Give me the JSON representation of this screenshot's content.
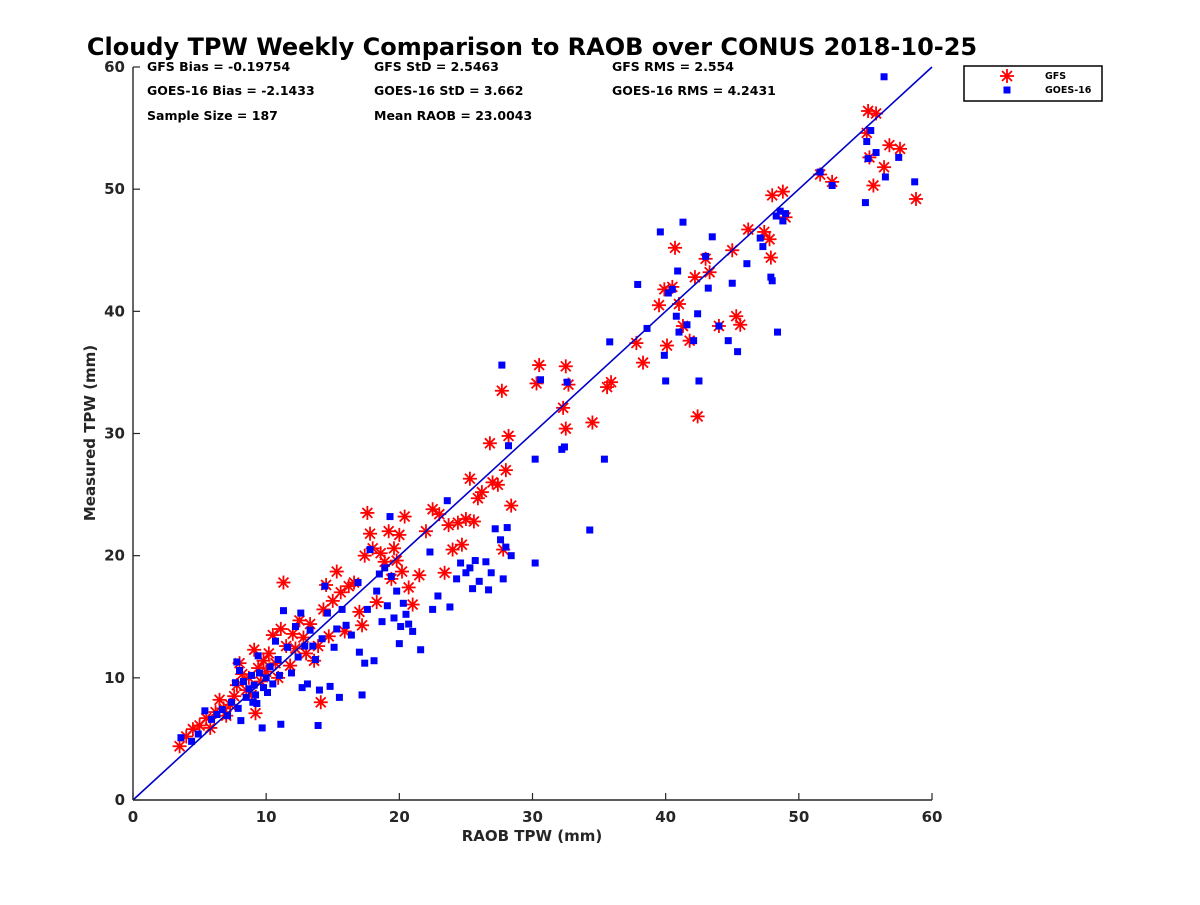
{
  "chart_data": {
    "type": "scatter",
    "title": "Cloudy TPW Weekly Comparison to RAOB over CONUS 2018-10-25",
    "xlabel": "RAOB TPW (mm)",
    "ylabel": "Measured TPW (mm)",
    "xlim": [
      0,
      60
    ],
    "ylim": [
      0,
      60
    ],
    "xticks": [
      "0",
      "10",
      "20",
      "30",
      "40",
      "50",
      "60"
    ],
    "yticks": [
      "0",
      "10",
      "20",
      "30",
      "40",
      "50",
      "60"
    ],
    "grid": false,
    "legend_position": "outside top-right",
    "reference_line": {
      "x": [
        0,
        60
      ],
      "y": [
        0,
        60
      ],
      "color": "#0000cc"
    },
    "stats": [
      "GFS Bias = -0.19754",
      "GFS StD = 2.5463",
      "GFS RMS = 2.554",
      "GOES-16 Bias = -2.1433",
      "GOES-16 StD = 3.662",
      "GOES-16 RMS = 4.2431",
      "Sample Size = 187",
      "Mean RAOB = 23.0043"
    ],
    "series": [
      {
        "name": "GFS",
        "marker": "asterisk",
        "color": "#ff0000",
        "points": [
          [
            3.5,
            4.4
          ],
          [
            4.0,
            5.2
          ],
          [
            4.5,
            5.8
          ],
          [
            5.0,
            6.1
          ],
          [
            5.5,
            6.7
          ],
          [
            5.8,
            5.9
          ],
          [
            6.2,
            7.2
          ],
          [
            6.5,
            8.2
          ],
          [
            6.8,
            7.5
          ],
          [
            7.0,
            6.9
          ],
          [
            7.3,
            7.8
          ],
          [
            7.6,
            8.5
          ],
          [
            7.8,
            9.4
          ],
          [
            8.0,
            11.2
          ],
          [
            8.2,
            10.3
          ],
          [
            8.5,
            9.0
          ],
          [
            8.7,
            10.0
          ],
          [
            8.9,
            8.6
          ],
          [
            9.1,
            12.3
          ],
          [
            9.2,
            7.1
          ],
          [
            9.4,
            10.8
          ],
          [
            9.6,
            9.7
          ],
          [
            9.8,
            11.4
          ],
          [
            10.0,
            10.5
          ],
          [
            10.2,
            12.0
          ],
          [
            10.5,
            13.5
          ],
          [
            10.7,
            11.2
          ],
          [
            10.9,
            10.0
          ],
          [
            11.1,
            14.0
          ],
          [
            11.3,
            17.8
          ],
          [
            11.5,
            12.6
          ],
          [
            11.8,
            11.0
          ],
          [
            12.0,
            13.6
          ],
          [
            12.2,
            12.4
          ],
          [
            12.5,
            14.7
          ],
          [
            12.8,
            13.3
          ],
          [
            13.0,
            12.0
          ],
          [
            13.3,
            14.4
          ],
          [
            13.6,
            11.4
          ],
          [
            13.9,
            12.6
          ],
          [
            14.1,
            8.0
          ],
          [
            14.3,
            15.6
          ],
          [
            14.5,
            17.6
          ],
          [
            14.7,
            13.4
          ],
          [
            15.0,
            16.3
          ],
          [
            15.3,
            18.7
          ],
          [
            15.6,
            17.0
          ],
          [
            15.9,
            13.8
          ],
          [
            16.2,
            17.5
          ],
          [
            16.6,
            17.8
          ],
          [
            17.0,
            15.4
          ],
          [
            17.2,
            14.3
          ],
          [
            17.4,
            20.0
          ],
          [
            17.6,
            23.5
          ],
          [
            17.8,
            21.8
          ],
          [
            18.0,
            20.6
          ],
          [
            18.3,
            16.2
          ],
          [
            18.6,
            20.2
          ],
          [
            18.9,
            19.5
          ],
          [
            19.2,
            22.0
          ],
          [
            19.4,
            18.1
          ],
          [
            19.6,
            20.6
          ],
          [
            19.8,
            19.6
          ],
          [
            20.0,
            21.7
          ],
          [
            20.2,
            18.7
          ],
          [
            20.4,
            23.2
          ],
          [
            20.7,
            17.4
          ],
          [
            21.0,
            16.0
          ],
          [
            21.5,
            18.4
          ],
          [
            22.0,
            22.0
          ],
          [
            22.5,
            23.8
          ],
          [
            23.0,
            23.4
          ],
          [
            23.4,
            18.6
          ],
          [
            23.7,
            22.5
          ],
          [
            24.0,
            20.5
          ],
          [
            24.4,
            22.7
          ],
          [
            24.7,
            20.9
          ],
          [
            25.0,
            23.0
          ],
          [
            25.3,
            26.3
          ],
          [
            25.6,
            22.8
          ],
          [
            25.9,
            24.7
          ],
          [
            26.2,
            25.2
          ],
          [
            26.8,
            29.2
          ],
          [
            27.0,
            26.0
          ],
          [
            27.4,
            25.8
          ],
          [
            27.7,
            33.5
          ],
          [
            27.8,
            20.5
          ],
          [
            28.0,
            27.0
          ],
          [
            28.2,
            29.8
          ],
          [
            28.4,
            24.1
          ],
          [
            30.3,
            34.1
          ],
          [
            30.5,
            35.6
          ],
          [
            32.3,
            32.1
          ],
          [
            32.5,
            35.5
          ],
          [
            32.5,
            30.4
          ],
          [
            32.7,
            34.0
          ],
          [
            34.5,
            30.9
          ],
          [
            35.6,
            33.8
          ],
          [
            35.9,
            34.2
          ],
          [
            37.8,
            37.4
          ],
          [
            38.3,
            35.8
          ],
          [
            39.5,
            40.5
          ],
          [
            39.9,
            41.8
          ],
          [
            40.1,
            37.2
          ],
          [
            40.5,
            42.0
          ],
          [
            40.7,
            45.2
          ],
          [
            41.0,
            40.6
          ],
          [
            41.3,
            38.8
          ],
          [
            41.8,
            37.6
          ],
          [
            42.2,
            42.8
          ],
          [
            42.4,
            31.4
          ],
          [
            43.0,
            44.3
          ],
          [
            43.3,
            43.2
          ],
          [
            44.0,
            38.8
          ],
          [
            45.0,
            45.0
          ],
          [
            45.3,
            39.6
          ],
          [
            45.6,
            38.9
          ],
          [
            46.2,
            46.7
          ],
          [
            47.4,
            46.5
          ],
          [
            47.8,
            45.9
          ],
          [
            47.9,
            44.4
          ],
          [
            48.0,
            49.5
          ],
          [
            48.8,
            49.8
          ],
          [
            49.0,
            47.7
          ],
          [
            51.6,
            51.2
          ],
          [
            52.5,
            50.6
          ],
          [
            55.1,
            54.6
          ],
          [
            55.2,
            56.4
          ],
          [
            55.3,
            52.6
          ],
          [
            55.6,
            50.3
          ],
          [
            55.8,
            56.2
          ],
          [
            56.4,
            51.8
          ],
          [
            56.8,
            53.6
          ],
          [
            57.6,
            53.3
          ],
          [
            58.8,
            49.2
          ]
        ]
      },
      {
        "name": "GOES-16",
        "marker": "square",
        "color": "#0000ff",
        "points": [
          [
            3.6,
            5.1
          ],
          [
            4.4,
            4.8
          ],
          [
            4.9,
            5.4
          ],
          [
            5.4,
            7.3
          ],
          [
            5.9,
            6.6
          ],
          [
            6.3,
            7.0
          ],
          [
            6.7,
            7.4
          ],
          [
            7.1,
            6.9
          ],
          [
            7.4,
            8.0
          ],
          [
            7.7,
            9.6
          ],
          [
            7.8,
            11.3
          ],
          [
            7.9,
            7.5
          ],
          [
            8.0,
            10.6
          ],
          [
            8.1,
            6.5
          ],
          [
            8.3,
            9.7
          ],
          [
            8.5,
            8.4
          ],
          [
            8.7,
            9.1
          ],
          [
            8.9,
            10.2
          ],
          [
            9.0,
            8.0
          ],
          [
            9.1,
            9.4
          ],
          [
            9.3,
            7.9
          ],
          [
            9.4,
            11.8
          ],
          [
            9.5,
            10.4
          ],
          [
            9.7,
            5.9
          ],
          [
            9.8,
            9.2
          ],
          [
            10.0,
            10.0
          ],
          [
            10.1,
            8.8
          ],
          [
            10.3,
            10.9
          ],
          [
            10.5,
            9.5
          ],
          [
            10.7,
            13.0
          ],
          [
            10.9,
            11.5
          ],
          [
            11.1,
            6.2
          ],
          [
            11.3,
            15.5
          ],
          [
            11.6,
            12.5
          ],
          [
            11.9,
            10.4
          ],
          [
            12.2,
            14.2
          ],
          [
            12.4,
            11.7
          ],
          [
            12.6,
            15.3
          ],
          [
            12.7,
            9.2
          ],
          [
            12.9,
            12.6
          ],
          [
            13.1,
            9.5
          ],
          [
            13.3,
            13.9
          ],
          [
            13.5,
            12.6
          ],
          [
            13.7,
            11.5
          ],
          [
            13.9,
            6.1
          ],
          [
            14.0,
            9.0
          ],
          [
            14.2,
            13.2
          ],
          [
            14.4,
            17.5
          ],
          [
            14.6,
            15.3
          ],
          [
            14.8,
            9.3
          ],
          [
            15.1,
            12.5
          ],
          [
            15.3,
            14.0
          ],
          [
            15.5,
            8.4
          ],
          [
            15.7,
            15.6
          ],
          [
            16.0,
            14.3
          ],
          [
            16.4,
            13.5
          ],
          [
            16.9,
            17.8
          ],
          [
            17.0,
            12.1
          ],
          [
            17.2,
            8.6
          ],
          [
            17.4,
            11.2
          ],
          [
            17.6,
            15.6
          ],
          [
            17.8,
            20.5
          ],
          [
            18.1,
            11.4
          ],
          [
            18.3,
            17.1
          ],
          [
            18.5,
            18.5
          ],
          [
            18.7,
            14.6
          ],
          [
            18.9,
            19.0
          ],
          [
            19.1,
            15.9
          ],
          [
            19.3,
            23.2
          ],
          [
            19.4,
            18.3
          ],
          [
            19.6,
            14.9
          ],
          [
            19.8,
            17.1
          ],
          [
            20.0,
            12.8
          ],
          [
            20.1,
            14.2
          ],
          [
            20.3,
            16.1
          ],
          [
            20.5,
            15.2
          ],
          [
            20.7,
            14.4
          ],
          [
            21.0,
            13.8
          ],
          [
            21.6,
            12.3
          ],
          [
            22.3,
            20.3
          ],
          [
            22.5,
            15.6
          ],
          [
            22.9,
            16.7
          ],
          [
            23.6,
            24.5
          ],
          [
            23.8,
            15.8
          ],
          [
            24.3,
            18.1
          ],
          [
            24.6,
            19.4
          ],
          [
            25.0,
            18.6
          ],
          [
            25.3,
            19.0
          ],
          [
            25.5,
            17.3
          ],
          [
            25.7,
            19.6
          ],
          [
            26.0,
            17.9
          ],
          [
            26.5,
            19.5
          ],
          [
            26.7,
            17.2
          ],
          [
            26.9,
            18.6
          ],
          [
            27.2,
            22.2
          ],
          [
            27.6,
            21.3
          ],
          [
            27.7,
            35.6
          ],
          [
            27.8,
            18.1
          ],
          [
            28.0,
            20.7
          ],
          [
            28.1,
            22.3
          ],
          [
            28.2,
            29.0
          ],
          [
            28.4,
            20.0
          ],
          [
            30.2,
            27.9
          ],
          [
            30.2,
            19.4
          ],
          [
            30.6,
            34.4
          ],
          [
            32.2,
            28.7
          ],
          [
            32.4,
            28.9
          ],
          [
            32.6,
            34.2
          ],
          [
            34.3,
            22.1
          ],
          [
            35.4,
            27.9
          ],
          [
            35.8,
            37.5
          ],
          [
            37.9,
            42.2
          ],
          [
            38.6,
            38.6
          ],
          [
            39.6,
            46.5
          ],
          [
            39.9,
            36.4
          ],
          [
            40.0,
            34.3
          ],
          [
            40.2,
            41.5
          ],
          [
            40.5,
            41.8
          ],
          [
            40.8,
            39.6
          ],
          [
            40.9,
            43.3
          ],
          [
            41.0,
            38.3
          ],
          [
            41.3,
            47.3
          ],
          [
            41.6,
            38.9
          ],
          [
            42.1,
            37.6
          ],
          [
            42.4,
            39.8
          ],
          [
            42.5,
            34.3
          ],
          [
            43.0,
            44.5
          ],
          [
            43.2,
            41.9
          ],
          [
            43.5,
            46.1
          ],
          [
            44.0,
            38.8
          ],
          [
            44.7,
            37.6
          ],
          [
            45.0,
            42.3
          ],
          [
            45.4,
            36.7
          ],
          [
            46.1,
            43.9
          ],
          [
            47.1,
            46.0
          ],
          [
            47.3,
            45.3
          ],
          [
            47.9,
            42.8
          ],
          [
            48.0,
            42.5
          ],
          [
            48.3,
            47.8
          ],
          [
            48.4,
            38.3
          ],
          [
            48.6,
            48.2
          ],
          [
            48.8,
            47.4
          ],
          [
            49.0,
            48.0
          ],
          [
            51.6,
            51.4
          ],
          [
            52.5,
            50.3
          ],
          [
            55.0,
            48.9
          ],
          [
            55.1,
            53.9
          ],
          [
            55.2,
            52.5
          ],
          [
            55.4,
            54.8
          ],
          [
            55.8,
            53.0
          ],
          [
            56.4,
            59.2
          ],
          [
            56.5,
            51.0
          ],
          [
            57.5,
            52.6
          ],
          [
            58.7,
            50.6
          ],
          [
            9.2,
            8.6
          ],
          [
            11.0,
            10.2
          ]
        ]
      }
    ]
  }
}
